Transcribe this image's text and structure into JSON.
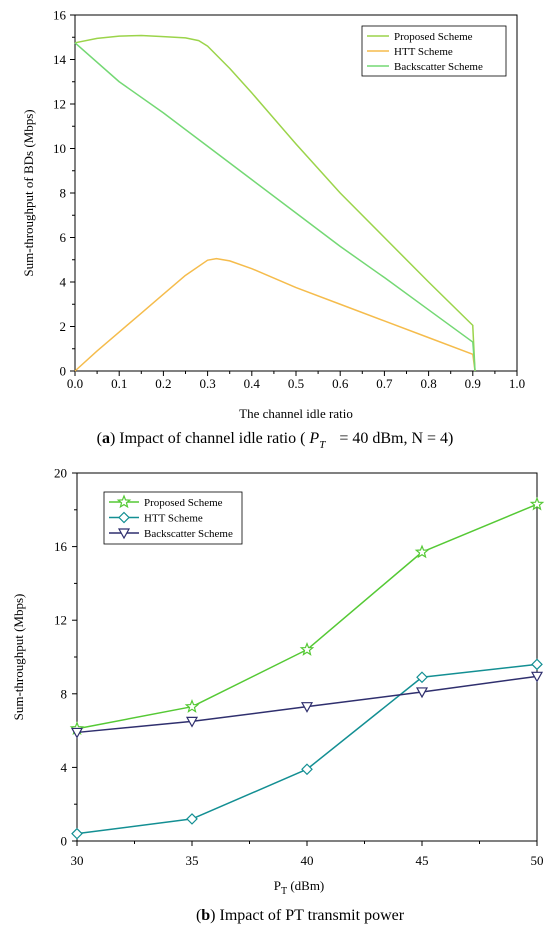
{
  "chart_data": [
    {
      "type": "line",
      "title": "",
      "caption": {
        "letter": "a",
        "text": ") Impact of channel idle ratio (",
        "symbol": "P",
        "subscript": "T",
        "tail": "= 40 dBm, N = 4)"
      },
      "xlabel": "The channel idle ratio",
      "ylabel": "Sum-throughput of BDs (Mbps)",
      "xlim": [
        0,
        1
      ],
      "ylim": [
        0,
        16
      ],
      "xticks": [
        "0.0",
        "0.1",
        "0.2",
        "0.3",
        "0.4",
        "0.5",
        "0.6",
        "0.7",
        "0.8",
        "0.9",
        "1.0"
      ],
      "yticks": [
        "0",
        "2",
        "4",
        "6",
        "8",
        "10",
        "12",
        "14",
        "16"
      ],
      "legend_position": "top-right",
      "series": [
        {
          "name": "Proposed Scheme",
          "color": "#9bd44a",
          "x": [
            0,
            0.05,
            0.1,
            0.15,
            0.2,
            0.25,
            0.28,
            0.3,
            0.35,
            0.4,
            0.5,
            0.6,
            0.7,
            0.8,
            0.9,
            0.9,
            0.905
          ],
          "y": [
            14.75,
            14.95,
            15.05,
            15.08,
            15.03,
            14.97,
            14.85,
            14.6,
            13.6,
            12.5,
            10.2,
            8.0,
            6.0,
            4.0,
            2.05,
            2.0,
            0
          ]
        },
        {
          "name": "HTT Scheme",
          "color": "#f5bc4c",
          "x": [
            0,
            0.05,
            0.1,
            0.15,
            0.2,
            0.25,
            0.3,
            0.32,
            0.35,
            0.4,
            0.5,
            0.6,
            0.7,
            0.8,
            0.9,
            0.905
          ],
          "y": [
            0,
            0.9,
            1.75,
            2.6,
            3.45,
            4.3,
            4.98,
            5.05,
            4.95,
            4.6,
            3.75,
            3.0,
            2.25,
            1.5,
            0.75,
            0
          ]
        },
        {
          "name": "Backscatter Scheme",
          "color": "#74d874",
          "x": [
            0,
            0.1,
            0.2,
            0.3,
            0.4,
            0.5,
            0.6,
            0.7,
            0.8,
            0.9,
            0.905
          ],
          "y": [
            14.75,
            13.0,
            11.6,
            10.1,
            8.6,
            7.1,
            5.6,
            4.2,
            2.75,
            1.3,
            0
          ]
        }
      ]
    },
    {
      "type": "line",
      "title": "",
      "caption": {
        "letter": "b",
        "text": ") Impact of PT transmit power"
      },
      "xlabel": {
        "base": "P",
        "subscript": "T",
        "tail": " (dBm)"
      },
      "ylabel": "Sum-throughput (Mbps)",
      "xlim": [
        30,
        50
      ],
      "ylim": [
        0,
        20
      ],
      "xticks": [
        "30",
        "35",
        "40",
        "45",
        "50"
      ],
      "yticks": [
        "0",
        "4",
        "8",
        "12",
        "16",
        "20"
      ],
      "legend_position": "top-left",
      "series": [
        {
          "name": "Proposed Scheme",
          "color": "#55c935",
          "marker": "star",
          "x": [
            30,
            35,
            40,
            45,
            50
          ],
          "y": [
            6.1,
            7.3,
            10.4,
            15.7,
            18.3
          ]
        },
        {
          "name": "HTT Scheme",
          "color": "#138f93",
          "marker": "diamond",
          "x": [
            30,
            35,
            40,
            45,
            50
          ],
          "y": [
            0.4,
            1.2,
            3.9,
            8.9,
            9.6
          ]
        },
        {
          "name": "Backscatter Scheme",
          "color": "#2f2f6e",
          "marker": "triangle-down",
          "x": [
            30,
            35,
            40,
            45,
            50
          ],
          "y": [
            5.9,
            6.5,
            7.3,
            8.1,
            8.95
          ]
        }
      ]
    }
  ]
}
